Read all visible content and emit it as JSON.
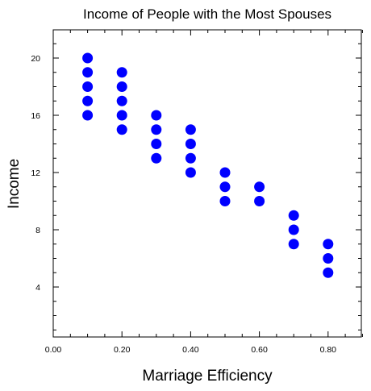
{
  "chart_data": {
    "type": "scatter",
    "title": "Income of People with the Most Spouses",
    "xlabel": "Marriage Efficiency",
    "ylabel": "Income",
    "xlim": [
      0.0,
      0.9
    ],
    "ylim": [
      0.5,
      22.0
    ],
    "x_ticks": [
      "0.00",
      "0.20",
      "0.40",
      "0.60",
      "0.80"
    ],
    "y_ticks": [
      "4",
      "8",
      "12",
      "16",
      "20"
    ],
    "grid": false,
    "legend": "none",
    "marker_color": "#0000FF",
    "points": [
      {
        "x": 0.1,
        "y": 20
      },
      {
        "x": 0.1,
        "y": 19
      },
      {
        "x": 0.1,
        "y": 18
      },
      {
        "x": 0.1,
        "y": 17
      },
      {
        "x": 0.1,
        "y": 16
      },
      {
        "x": 0.2,
        "y": 19
      },
      {
        "x": 0.2,
        "y": 18
      },
      {
        "x": 0.2,
        "y": 17
      },
      {
        "x": 0.2,
        "y": 16
      },
      {
        "x": 0.2,
        "y": 15
      },
      {
        "x": 0.3,
        "y": 16
      },
      {
        "x": 0.3,
        "y": 15
      },
      {
        "x": 0.3,
        "y": 14
      },
      {
        "x": 0.3,
        "y": 13
      },
      {
        "x": 0.4,
        "y": 15
      },
      {
        "x": 0.4,
        "y": 14
      },
      {
        "x": 0.4,
        "y": 13
      },
      {
        "x": 0.4,
        "y": 12
      },
      {
        "x": 0.5,
        "y": 12
      },
      {
        "x": 0.5,
        "y": 11
      },
      {
        "x": 0.5,
        "y": 10
      },
      {
        "x": 0.6,
        "y": 11
      },
      {
        "x": 0.6,
        "y": 10
      },
      {
        "x": 0.7,
        "y": 9
      },
      {
        "x": 0.7,
        "y": 8
      },
      {
        "x": 0.7,
        "y": 7
      },
      {
        "x": 0.8,
        "y": 7
      },
      {
        "x": 0.8,
        "y": 6
      },
      {
        "x": 0.8,
        "y": 5
      }
    ]
  }
}
